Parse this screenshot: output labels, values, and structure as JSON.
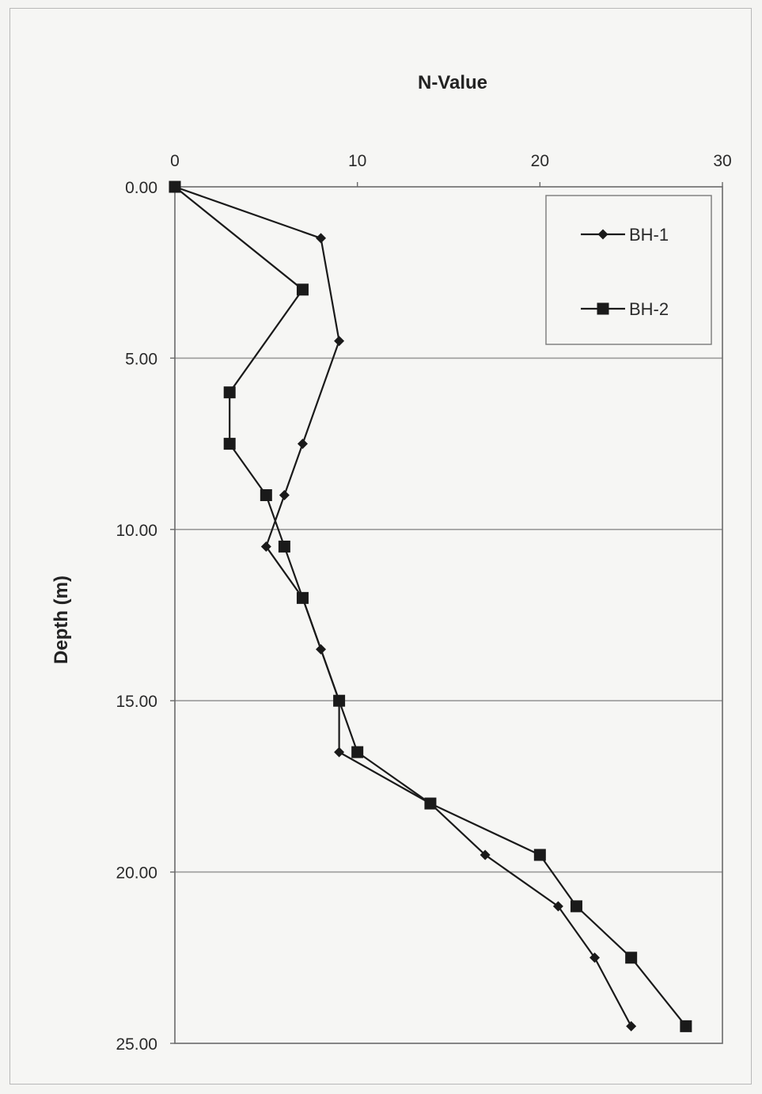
{
  "chart_data": {
    "type": "line",
    "title": "N-Value",
    "xlabel": "",
    "ylabel": "Depth (m)",
    "xlim": [
      0,
      30
    ],
    "ylim": [
      0,
      25
    ],
    "y_inverted": true,
    "x_axis_position": "top",
    "x_ticks": [
      0,
      10,
      20,
      30
    ],
    "x_tick_labels": [
      "0",
      "10",
      "20",
      "30"
    ],
    "y_ticks": [
      0,
      5,
      10,
      15,
      20,
      25
    ],
    "y_tick_labels": [
      "0.00",
      "5.00",
      "10.00",
      "15.00",
      "20.00",
      "25.00"
    ],
    "grid": "horizontal",
    "legend_position": "top-right",
    "series": [
      {
        "name": "BH-1",
        "marker": "diamond",
        "color": "#1a1a1a",
        "points": [
          {
            "x": 0,
            "y": 0
          },
          {
            "x": 8,
            "y": 1.5
          },
          {
            "x": 9,
            "y": 4.5
          },
          {
            "x": 7,
            "y": 7.5
          },
          {
            "x": 6,
            "y": 9
          },
          {
            "x": 5,
            "y": 10.5
          },
          {
            "x": 7,
            "y": 12
          },
          {
            "x": 8,
            "y": 13.5
          },
          {
            "x": 9,
            "y": 15
          },
          {
            "x": 9,
            "y": 16.5
          },
          {
            "x": 14,
            "y": 18
          },
          {
            "x": 17,
            "y": 19.5
          },
          {
            "x": 21,
            "y": 21
          },
          {
            "x": 23,
            "y": 22.5
          },
          {
            "x": 25,
            "y": 24.5
          }
        ]
      },
      {
        "name": "BH-2",
        "marker": "square",
        "color": "#1a1a1a",
        "points": [
          {
            "x": 0,
            "y": 0
          },
          {
            "x": 7,
            "y": 3
          },
          {
            "x": 3,
            "y": 6
          },
          {
            "x": 3,
            "y": 7.5
          },
          {
            "x": 5,
            "y": 9
          },
          {
            "x": 6,
            "y": 10.5
          },
          {
            "x": 7,
            "y": 12
          },
          {
            "x": 9,
            "y": 15
          },
          {
            "x": 10,
            "y": 16.5
          },
          {
            "x": 14,
            "y": 18
          },
          {
            "x": 20,
            "y": 19.5
          },
          {
            "x": 22,
            "y": 21
          },
          {
            "x": 25,
            "y": 22.5
          },
          {
            "x": 28,
            "y": 24.5
          }
        ]
      }
    ]
  },
  "colors": {
    "line": "#1a1a1a",
    "grid": "#9a9a9a",
    "plot_border": "#6a6a6a",
    "legend_border": "#7a7a7a"
  }
}
